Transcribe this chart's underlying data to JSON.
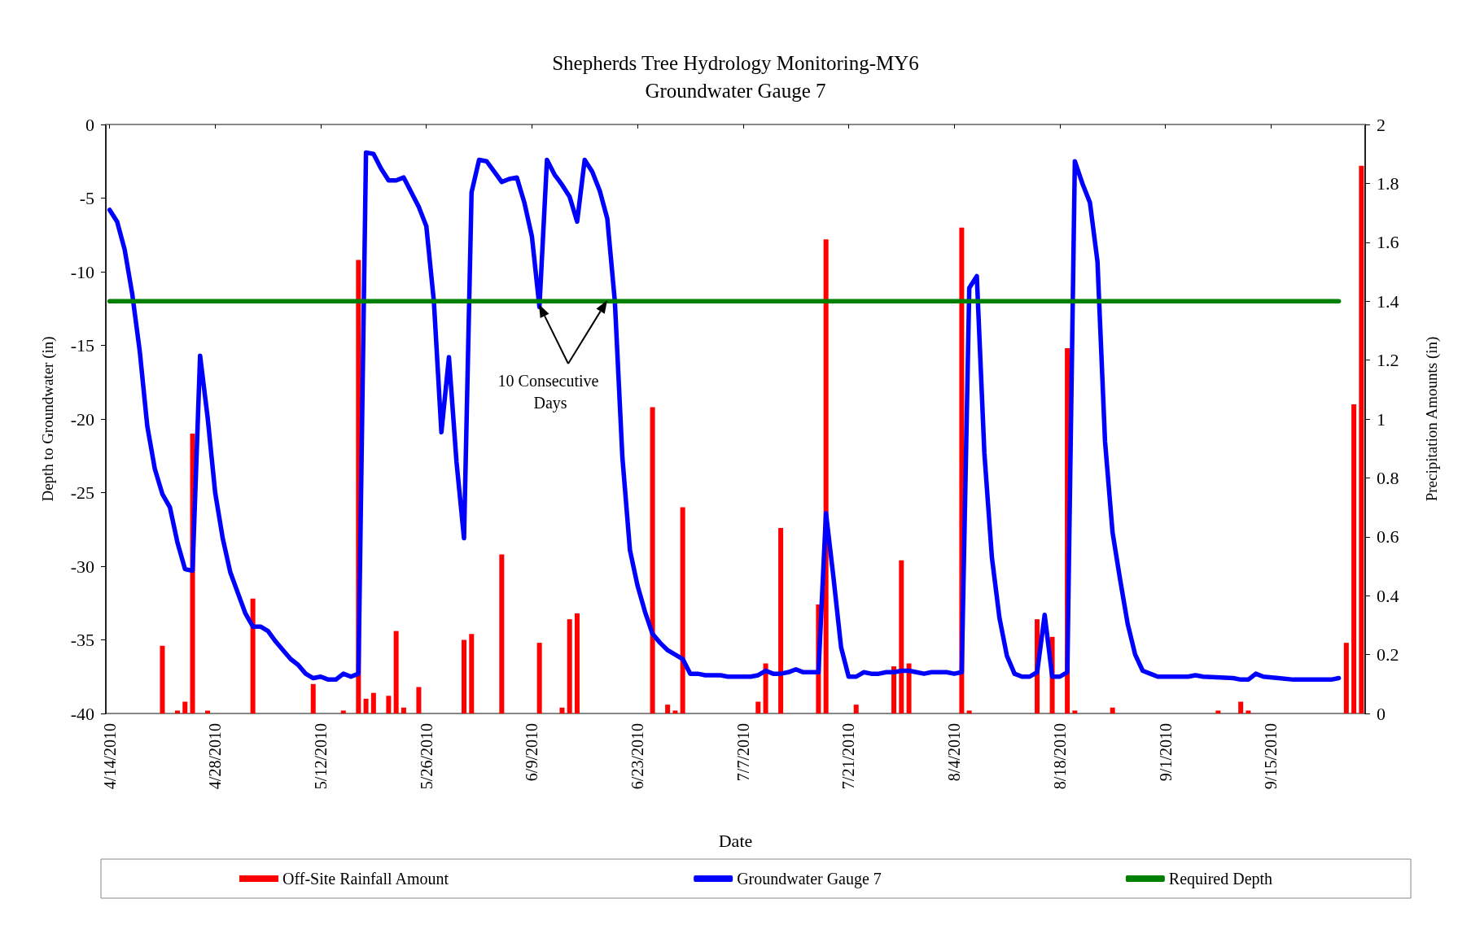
{
  "chart_data": {
    "type": "line",
    "title": "Shepherds Tree Hydrology Monitoring-MY6",
    "subtitle": "Groundwater Gauge 7",
    "xlabel": "Date",
    "ylabel": "Depth to Groundwater (in)",
    "y2label": "Precipitation Amounts (in)",
    "xlim": [
      "2010-04-13T12:00",
      "2010-09-27T12:00"
    ],
    "xticks": [
      {
        "value": "2010-04-14",
        "label": "4/14/2010"
      },
      {
        "value": "2010-04-28",
        "label": "4/28/2010"
      },
      {
        "value": "2010-05-12",
        "label": "5/12/2010"
      },
      {
        "value": "2010-05-26",
        "label": "5/26/2010"
      },
      {
        "value": "2010-06-09",
        "label": "6/9/2010"
      },
      {
        "value": "2010-06-23",
        "label": "6/23/2010"
      },
      {
        "value": "2010-07-07",
        "label": "7/7/2010"
      },
      {
        "value": "2010-07-21",
        "label": "7/21/2010"
      },
      {
        "value": "2010-08-04",
        "label": "8/4/2010"
      },
      {
        "value": "2010-08-18",
        "label": "8/18/2010"
      },
      {
        "value": "2010-09-01",
        "label": "9/1/2010"
      },
      {
        "value": "2010-09-15",
        "label": "9/15/2010"
      }
    ],
    "ylim": [
      -40,
      0
    ],
    "yticks": [
      -40,
      -35,
      -30,
      -25,
      -20,
      -15,
      -10,
      -5,
      0
    ],
    "y2lim": [
      0,
      2
    ],
    "y2ticks": [
      0,
      0.2,
      0.4,
      0.6,
      0.8,
      1,
      1.2,
      1.4,
      1.6,
      1.8,
      2
    ],
    "grid": false,
    "legend": "bottom",
    "marker": "none",
    "line_style": "solid",
    "annotations": [
      "10 Consecutive Days"
    ],
    "series": [
      {
        "name": "Off-Site Rainfall Amount",
        "type": "bar",
        "axis": "y2",
        "color": "#ff0000",
        "x": [
          "2010-04-21",
          "2010-04-23",
          "2010-04-24",
          "2010-04-25",
          "2010-04-27",
          "2010-05-03",
          "2010-05-11",
          "2010-05-15",
          "2010-05-16",
          "2010-05-17",
          "2010-05-18",
          "2010-05-19",
          "2010-05-21",
          "2010-05-22",
          "2010-05-23",
          "2010-05-25",
          "2010-05-31",
          "2010-06-01",
          "2010-06-05",
          "2010-06-10",
          "2010-06-13",
          "2010-06-14",
          "2010-06-15",
          "2010-06-25",
          "2010-06-27",
          "2010-06-28",
          "2010-06-29",
          "2010-07-09",
          "2010-07-10",
          "2010-07-12",
          "2010-07-17",
          "2010-07-18",
          "2010-07-22",
          "2010-07-27",
          "2010-07-28",
          "2010-07-29",
          "2010-08-05",
          "2010-08-06",
          "2010-08-15",
          "2010-08-17",
          "2010-08-19",
          "2010-08-20",
          "2010-08-25",
          "2010-09-08",
          "2010-09-11",
          "2010-09-12",
          "2010-09-25",
          "2010-09-26",
          "2010-09-27"
        ],
        "values": [
          0.23,
          0.01,
          0.04,
          0.95,
          0.01,
          0.39,
          0.1,
          0.01,
          null,
          1.54,
          0.05,
          0.07,
          0.06,
          0.28,
          0.02,
          0.09,
          0.25,
          0.27,
          0.54,
          0.24,
          0.02,
          0.32,
          0.34,
          1.04,
          0.03,
          0.01,
          0.7,
          0.04,
          0.17,
          0.63,
          0.37,
          1.61,
          0.03,
          0.16,
          0.52,
          0.17,
          1.65,
          0.01,
          0.32,
          0.26,
          1.24,
          0.01,
          0.02,
          0.01,
          0.04,
          0.01,
          0.24,
          1.05,
          1.86
        ]
      },
      {
        "name": "Groundwater Gauge 7",
        "color": "#0000ff",
        "x": [
          "2010-04-14",
          "2010-04-15",
          "2010-04-16",
          "2010-04-17",
          "2010-04-18",
          "2010-04-19",
          "2010-04-20",
          "2010-04-21",
          "2010-04-22",
          "2010-04-23",
          "2010-04-24",
          "2010-04-25",
          "2010-04-26",
          "2010-04-27",
          "2010-04-28",
          "2010-04-29",
          "2010-04-30",
          "2010-05-01",
          "2010-05-02",
          "2010-05-03",
          "2010-05-04",
          "2010-05-05",
          "2010-05-06",
          "2010-05-07",
          "2010-05-08",
          "2010-05-09",
          "2010-05-10",
          "2010-05-11",
          "2010-05-12",
          "2010-05-13",
          "2010-05-14",
          "2010-05-15",
          "2010-05-16",
          "2010-05-17",
          "2010-05-18",
          "2010-05-19",
          "2010-05-20",
          "2010-05-21",
          "2010-05-22",
          "2010-05-23",
          "2010-05-24",
          "2010-05-25",
          "2010-05-26",
          "2010-05-27",
          "2010-05-28",
          "2010-05-29",
          "2010-05-30",
          "2010-05-31",
          "2010-06-01",
          "2010-06-02",
          "2010-06-03",
          "2010-06-04",
          "2010-06-05",
          "2010-06-06",
          "2010-06-07",
          "2010-06-08",
          "2010-06-09",
          "2010-06-10",
          "2010-06-11",
          "2010-06-12",
          "2010-06-13",
          "2010-06-14",
          "2010-06-15",
          "2010-06-16",
          "2010-06-17",
          "2010-06-18",
          "2010-06-19",
          "2010-06-20",
          "2010-06-21",
          "2010-06-22",
          "2010-06-23",
          "2010-06-24",
          "2010-06-25",
          "2010-06-26",
          "2010-06-27",
          "2010-06-28",
          "2010-06-29",
          "2010-06-30",
          "2010-07-01",
          "2010-07-02",
          "2010-07-03",
          "2010-07-04",
          "2010-07-05",
          "2010-07-06",
          "2010-07-07",
          "2010-07-08",
          "2010-07-09",
          "2010-07-10",
          "2010-07-11",
          "2010-07-12",
          "2010-07-13",
          "2010-07-14",
          "2010-07-15",
          "2010-07-16",
          "2010-07-17",
          "2010-07-18",
          "2010-07-19",
          "2010-07-20",
          "2010-07-21",
          "2010-07-22",
          "2010-07-23",
          "2010-07-24",
          "2010-07-25",
          "2010-07-26",
          "2010-07-27",
          "2010-07-28",
          "2010-07-29",
          "2010-07-30",
          "2010-07-31",
          "2010-08-01",
          "2010-08-02",
          "2010-08-03",
          "2010-08-04",
          "2010-08-05",
          "2010-08-06",
          "2010-08-07",
          "2010-08-08",
          "2010-08-09",
          "2010-08-10",
          "2010-08-11",
          "2010-08-12",
          "2010-08-13",
          "2010-08-14",
          "2010-08-15",
          "2010-08-16",
          "2010-08-17",
          "2010-08-18",
          "2010-08-19",
          "2010-08-20",
          "2010-08-21",
          "2010-08-22",
          "2010-08-23",
          "2010-08-24",
          "2010-08-25",
          "2010-08-26",
          "2010-08-27",
          "2010-08-28",
          "2010-08-29",
          "2010-08-30",
          "2010-08-31",
          "2010-09-04",
          "2010-09-05",
          "2010-09-06",
          "2010-09-10",
          "2010-09-11",
          "2010-09-12",
          "2010-09-13",
          "2010-09-14",
          "2010-09-16",
          "2010-09-18",
          "2010-09-23",
          "2010-09-24"
        ],
        "values": [
          -5.8,
          -6.6,
          -8.5,
          -11.5,
          -15.4,
          -20.5,
          -23.4,
          -25.1,
          -26,
          -28.4,
          -30.2,
          -30.3,
          -15.7,
          -19.9,
          -25,
          -28.1,
          -30.4,
          -31.8,
          -33.2,
          -34.1,
          -34.1,
          -34.4,
          -35.1,
          -35.7,
          -36.3,
          -36.7,
          -37.3,
          -37.6,
          -37.5,
          -37.7,
          -37.7,
          -37.3,
          -37.5,
          -37.3,
          -1.9,
          -2,
          -3,
          -3.8,
          -3.8,
          -3.6,
          -4.6,
          -5.6,
          -6.9,
          -12,
          -20.9,
          -15.8,
          -22.9,
          -28.1,
          -4.6,
          -2.4,
          -2.5,
          -3.2,
          -3.9,
          -3.7,
          -3.6,
          -5.3,
          -7.6,
          -12.4,
          -2.4,
          -3.4,
          -4.1,
          -4.9,
          -6.6,
          -2.4,
          -3.2,
          -4.5,
          -6.4,
          -12,
          -22.6,
          -28.9,
          -31.3,
          -33.1,
          -34.6,
          -35.2,
          -35.7,
          -36,
          -36.3,
          -37.3,
          -37.3,
          -37.4,
          -37.4,
          -37.4,
          -37.5,
          -37.5,
          -37.5,
          -37.5,
          -37.4,
          -37.1,
          -37.3,
          -37.3,
          -37.2,
          -37,
          -37.2,
          -37.2,
          -37.2,
          -26.4,
          -30.8,
          -35.5,
          -37.5,
          -37.5,
          -37.2,
          -37.3,
          -37.3,
          -37.2,
          -37.2,
          -37.1,
          -37.1,
          -37.2,
          -37.3,
          -37.2,
          -37.2,
          -37.2,
          -37.3,
          -37.2,
          -11.1,
          -10.3,
          -22.3,
          -29.4,
          -33.5,
          -36.1,
          -37.3,
          -37.5,
          -37.5,
          -37.2,
          -33.3,
          -37.5,
          -37.5,
          -37.2,
          -2.5,
          -4,
          -5.3,
          -9.3,
          -21.5,
          -27.7,
          -30.9,
          -33.9,
          -36,
          -37.1,
          -37.3,
          -37.5,
          -37.5,
          -37.4,
          -37.5,
          -37.6,
          -37.7,
          -37.7,
          -37.3,
          -37.5,
          -37.6,
          -37.7,
          -37.7,
          -37.6
        ]
      },
      {
        "name": "Required Depth",
        "color": "#008000",
        "x": [
          "2010-04-14",
          "2010-09-24"
        ],
        "values": [
          -12,
          -12
        ]
      }
    ]
  }
}
